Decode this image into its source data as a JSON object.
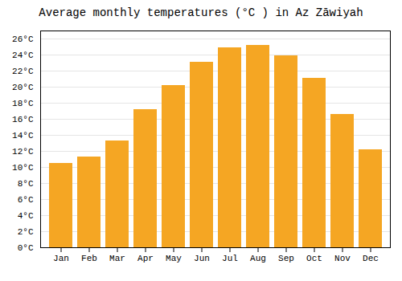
{
  "chart_data": {
    "type": "bar",
    "title": "Average monthly temperatures (°C ) in Az Zāwiyah",
    "categories": [
      "Jan",
      "Feb",
      "Mar",
      "Apr",
      "May",
      "Jun",
      "Jul",
      "Aug",
      "Sep",
      "Oct",
      "Nov",
      "Dec"
    ],
    "values": [
      10.5,
      11.3,
      13.3,
      17.2,
      20.2,
      23.1,
      24.9,
      25.2,
      23.9,
      21.1,
      16.6,
      12.2
    ],
    "color": "#F5A623",
    "ylim": [
      0,
      27
    ],
    "yticks": [
      {
        "value": 0,
        "label": "0°C"
      },
      {
        "value": 2,
        "label": "2°C"
      },
      {
        "value": 4,
        "label": "4°C"
      },
      {
        "value": 6,
        "label": "6°C"
      },
      {
        "value": 8,
        "label": "8°C"
      },
      {
        "value": 10,
        "label": "10°C"
      },
      {
        "value": 12,
        "label": "12°C"
      },
      {
        "value": 14,
        "label": "14°C"
      },
      {
        "value": 16,
        "label": "16°C"
      },
      {
        "value": 18,
        "label": "18°C"
      },
      {
        "value": 20,
        "label": "20°C"
      },
      {
        "value": 22,
        "label": "22°C"
      },
      {
        "value": 24,
        "label": "24°C"
      },
      {
        "value": 26,
        "label": "26°C"
      }
    ],
    "grid": true
  }
}
